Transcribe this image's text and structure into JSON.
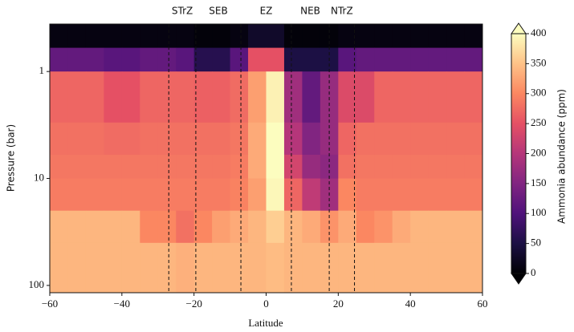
{
  "chart_data": {
    "type": "heatmap",
    "xlabel": "Latitude",
    "ylabel": "Pressure (bar)",
    "colorbar_label": "Ammonia abundance (ppm)",
    "xlim": [
      -60,
      60
    ],
    "xticks": [
      {
        "value": -60,
        "label": "−60"
      },
      {
        "value": -40,
        "label": "−40"
      },
      {
        "value": -20,
        "label": "−20"
      },
      0,
      20,
      40,
      60
    ],
    "ylim": [
      0.36,
      117
    ],
    "yscale": "log",
    "yinvert": true,
    "yticks": [
      1,
      10,
      100
    ],
    "clim": [
      0,
      400
    ],
    "cticks": [
      0,
      50,
      100,
      150,
      200,
      250,
      300,
      350,
      400
    ],
    "colormap": [
      "#000004",
      "#1c1044",
      "#4f127b",
      "#812581",
      "#b5367a",
      "#e55064",
      "#fb8761",
      "#fec287",
      "#fcfdbf"
    ],
    "boundaries": [
      -27,
      -19.5,
      -7,
      7,
      17.5,
      24.5
    ],
    "band_labels": [
      "STrZ",
      "SEB",
      "EZ",
      "NEB",
      "NTrZ"
    ],
    "xbins": [
      -60,
      -55,
      -50,
      -45,
      -40,
      -35,
      -30,
      -25,
      -20,
      -15,
      -10,
      -5,
      0,
      5,
      10,
      15,
      20,
      25,
      30,
      35,
      40,
      45,
      50,
      55,
      60
    ],
    "ybins": [
      0.36,
      0.6,
      1,
      3,
      6,
      10,
      20,
      40,
      117
    ],
    "z": [
      [
        10,
        10,
        10,
        10,
        10,
        10,
        10,
        10,
        5,
        5,
        10,
        30,
        30,
        5,
        5,
        5,
        10,
        10,
        10,
        10,
        10,
        10,
        10,
        10
      ],
      [
        120,
        120,
        120,
        110,
        110,
        120,
        120,
        110,
        60,
        60,
        110,
        250,
        250,
        50,
        50,
        50,
        110,
        120,
        120,
        120,
        120,
        120,
        120,
        120
      ],
      [
        270,
        270,
        270,
        250,
        250,
        270,
        270,
        270,
        265,
        265,
        275,
        320,
        390,
        180,
        120,
        170,
        240,
        240,
        270,
        270,
        270,
        270,
        270,
        270
      ],
      [
        280,
        280,
        280,
        275,
        275,
        280,
        280,
        280,
        280,
        280,
        285,
        330,
        400,
        200,
        150,
        170,
        270,
        280,
        280,
        280,
        280,
        280,
        280,
        280
      ],
      [
        285,
        285,
        285,
        285,
        285,
        285,
        285,
        285,
        285,
        285,
        290,
        330,
        400,
        230,
        170,
        160,
        280,
        285,
        285,
        285,
        285,
        285,
        285,
        285
      ],
      [
        290,
        290,
        290,
        290,
        290,
        290,
        290,
        290,
        290,
        290,
        295,
        320,
        395,
        270,
        210,
        180,
        300,
        290,
        290,
        290,
        290,
        290,
        290,
        290
      ],
      [
        340,
        340,
        340,
        340,
        340,
        300,
        300,
        280,
        300,
        320,
        330,
        340,
        360,
        340,
        330,
        310,
        330,
        300,
        310,
        330,
        340,
        340,
        340,
        340
      ],
      [
        340,
        340,
        340,
        340,
        340,
        340,
        340,
        335,
        340,
        340,
        340,
        340,
        345,
        340,
        340,
        340,
        340,
        340,
        340,
        340,
        340,
        340,
        340,
        340
      ]
    ]
  }
}
